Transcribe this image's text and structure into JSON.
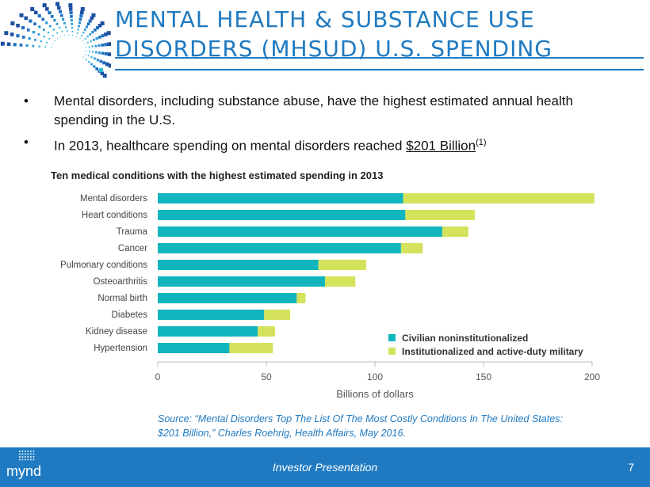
{
  "header": {
    "title_line1": "MENTAL HEALTH & SUBSTANCE USE",
    "title_line2": "DISORDERS (MHSUD) U.S. SPENDING"
  },
  "bullets": [
    {
      "text": "Mental disorders, including substance  abuse,  have the highest estimated annual health spending in the U.S."
    },
    {
      "text": "In 2013, healthcare spending on mental disorders reached  ",
      "highlight": "$201 Billion",
      "footnote": "(1)"
    }
  ],
  "chart_data": {
    "type": "bar",
    "orientation": "horizontal",
    "stacked": true,
    "title": "Ten medical conditions with the highest estimated spending in 2013",
    "xlabel": "Billions of dollars",
    "ylabel": "",
    "xlim": [
      0,
      200
    ],
    "xticks": [
      0,
      50,
      100,
      150,
      200
    ],
    "grid": false,
    "legend_position": "bottom-right",
    "categories": [
      "Mental disorders",
      "Heart conditions",
      "Trauma",
      "Cancer",
      "Pulmonary conditions",
      "Osteoarthritis",
      "Normal birth",
      "Diabetes",
      "Kidney disease",
      "Hypertension"
    ],
    "series": [
      {
        "name": "Civilian noninstitutionalized",
        "color": "#11b5bd",
        "values": [
          113,
          114,
          131,
          112,
          74,
          77,
          64,
          49,
          46,
          33
        ]
      },
      {
        "name": "Institutionalized and active-duty military",
        "color": "#d5e25c",
        "values": [
          88,
          32,
          12,
          10,
          22,
          14,
          4,
          12,
          8,
          20
        ]
      }
    ]
  },
  "source": {
    "line1": "Source: “Mental Disorders Top The List Of The Most Costly Conditions In The United States:",
    "line2": "$201 Billion,” Charles Roehrig, Health Affairs, May 2016."
  },
  "footer": {
    "brand": "mynd",
    "presentation": "Investor Presentation",
    "page_number": "7"
  }
}
